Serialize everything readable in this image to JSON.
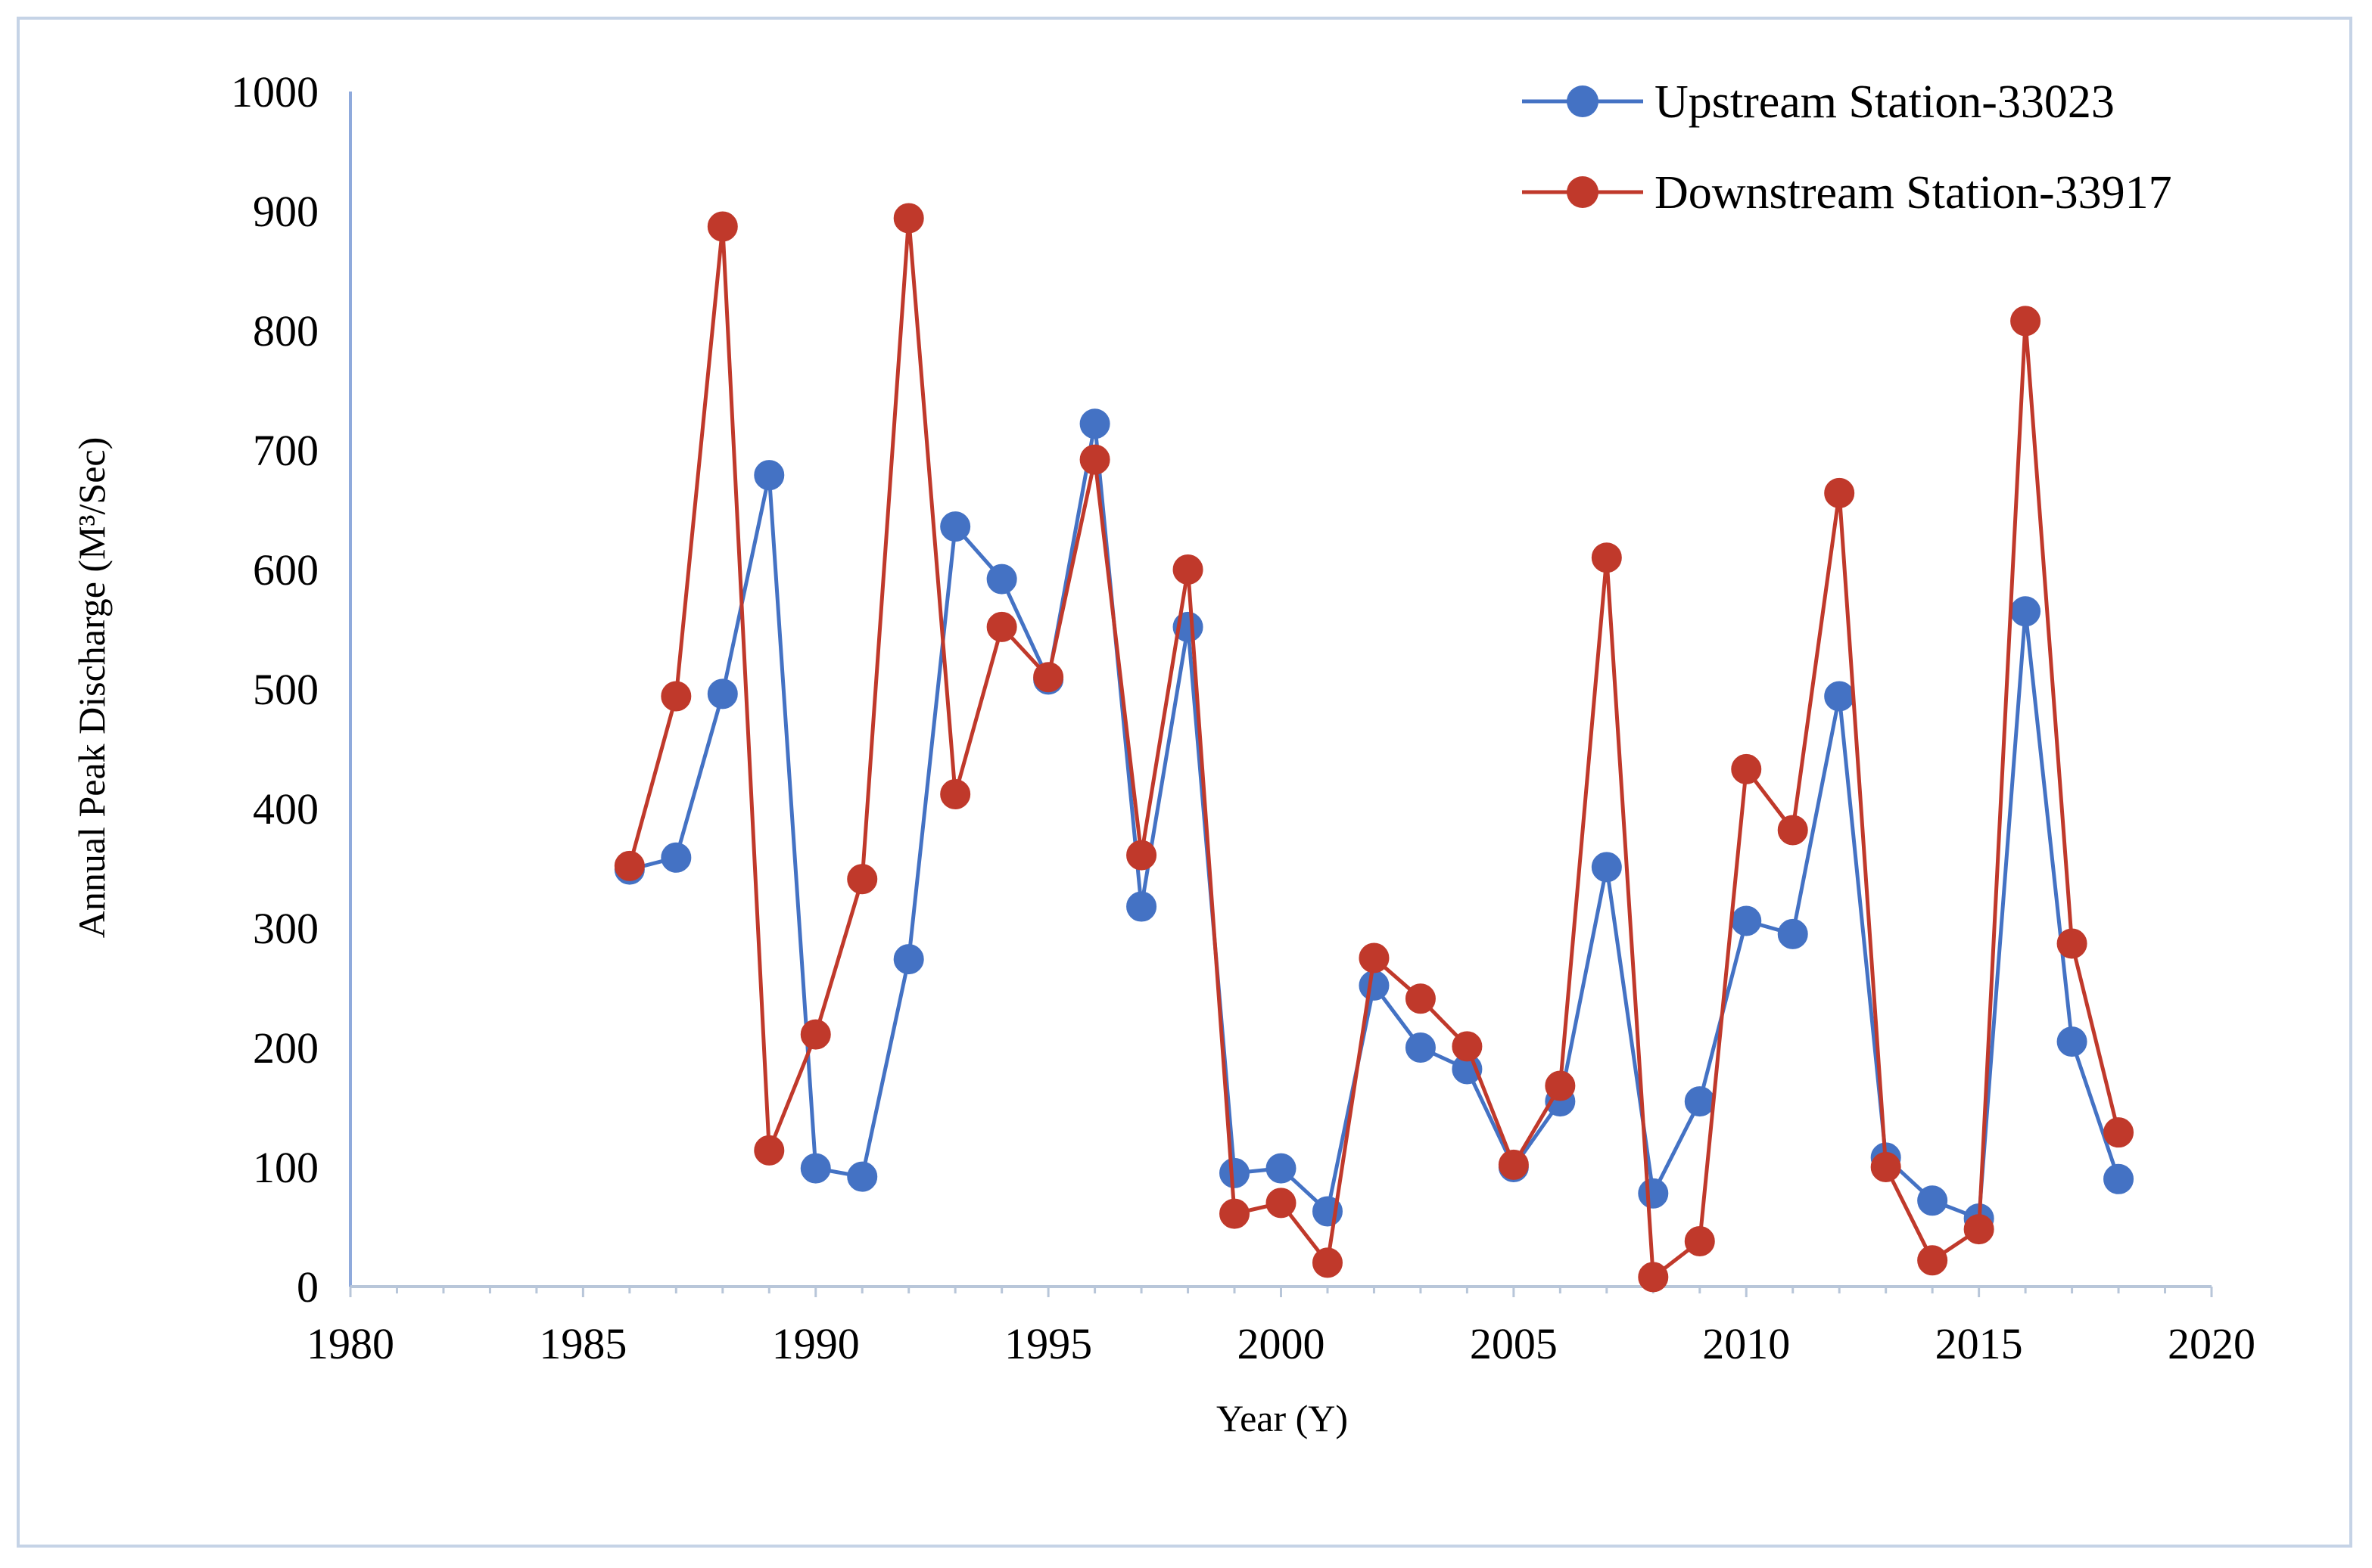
{
  "chart_data": {
    "type": "line",
    "title": "",
    "xlabel": "Year (Y)",
    "ylabel": "Annual Peak Discharge (M³/Sec)",
    "xlim": [
      1980,
      2020
    ],
    "ylim": [
      0,
      1000
    ],
    "x_ticks": [
      1980,
      1985,
      1990,
      1995,
      2000,
      2005,
      2010,
      2015,
      2020
    ],
    "y_ticks": [
      0,
      100,
      200,
      300,
      400,
      500,
      600,
      700,
      800,
      900,
      1000
    ],
    "legend_position": "top-right",
    "x": [
      1986,
      1987,
      1988,
      1989,
      1990,
      1991,
      1992,
      1993,
      1994,
      1995,
      1996,
      1997,
      1998,
      1999,
      2000,
      2001,
      2002,
      2003,
      2004,
      2005,
      2006,
      2007,
      2008,
      2009,
      2010,
      2011,
      2012,
      2013,
      2014,
      2015,
      2016,
      2017,
      2018
    ],
    "series": [
      {
        "name": "Upstream Station-33023",
        "color": "#4472c4",
        "values": [
          349,
          359,
          496,
          679,
          99,
          92,
          274,
          636,
          592,
          508,
          722,
          318,
          552,
          95,
          99,
          63,
          252,
          200,
          182,
          100,
          155,
          351,
          78,
          155,
          306,
          295,
          494,
          108,
          72,
          57,
          565,
          205,
          90
        ]
      },
      {
        "name": "Downstream Station-33917",
        "color": "#c0392b",
        "values": [
          352,
          494,
          887,
          114,
          211,
          341,
          894,
          412,
          552,
          510,
          692,
          361,
          600,
          61,
          70,
          20,
          275,
          241,
          201,
          102,
          168,
          610,
          8,
          38,
          433,
          382,
          664,
          100,
          22,
          48,
          808,
          287,
          129
        ]
      }
    ]
  }
}
